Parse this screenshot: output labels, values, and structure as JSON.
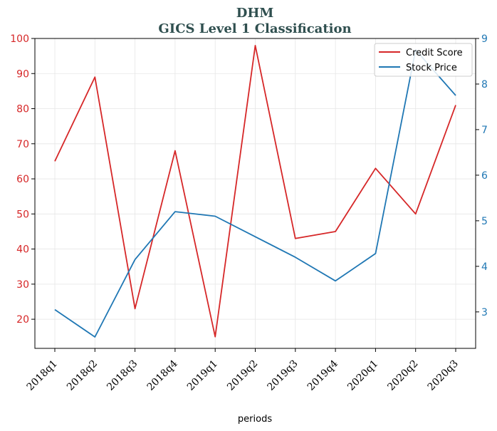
{
  "chart_data": {
    "type": "line",
    "title": "DHM",
    "subtitle": "GICS Level 1 Classification",
    "xlabel": "periods",
    "categories": [
      "2018q1",
      "2018q2",
      "2018q3",
      "2018q4",
      "2019q1",
      "2019q2",
      "2019q3",
      "2019q4",
      "2020q1",
      "2020q2",
      "2020q3"
    ],
    "series": [
      {
        "name": "Credit Score",
        "axis": "left",
        "color": "#d62728",
        "values": [
          65,
          89,
          23,
          68,
          15,
          98,
          43,
          45,
          63,
          50,
          81
        ]
      },
      {
        "name": "Stock Price",
        "axis": "right",
        "color": "#1f77b4",
        "values": [
          3.05,
          2.45,
          4.15,
          5.2,
          5.1,
          4.65,
          4.2,
          3.68,
          4.28,
          8.75,
          7.75
        ]
      }
    ],
    "y_left": {
      "ylim": [
        11.7,
        100
      ],
      "ticks": [
        20,
        30,
        40,
        50,
        60,
        70,
        80,
        90,
        100
      ],
      "color": "#d62728"
    },
    "y_right": {
      "ylim": [
        2.2,
        9
      ],
      "ticks": [
        3,
        4,
        5,
        6,
        7,
        8,
        9
      ],
      "color": "#1f77b4"
    },
    "grid": true,
    "legend": "top-right"
  }
}
